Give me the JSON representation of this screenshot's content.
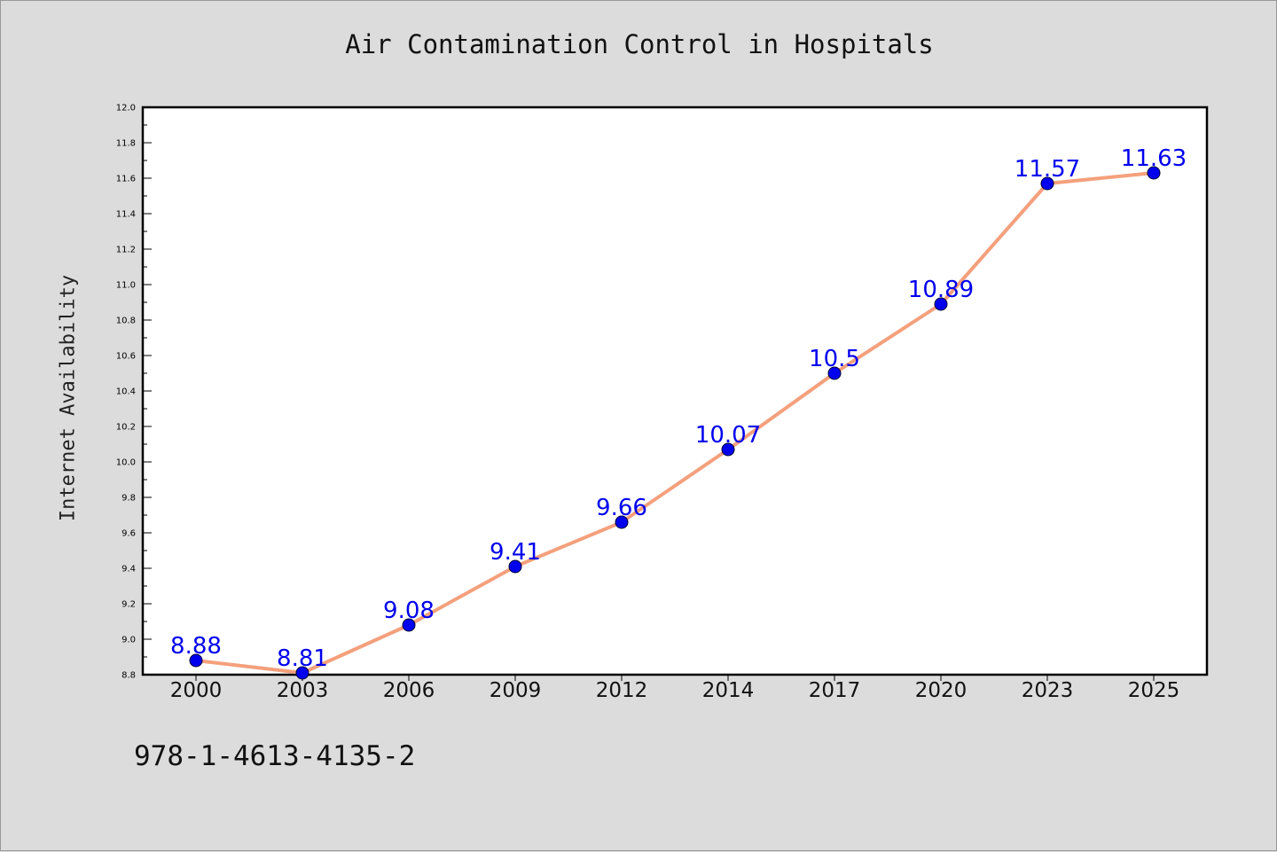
{
  "chart_data": {
    "type": "line",
    "title": "Air Contamination Control in Hospitals",
    "xlabel": "",
    "ylabel": "Internet Availability",
    "categories": [
      "2000",
      "2003",
      "2006",
      "2009",
      "2012",
      "2014",
      "2017",
      "2020",
      "2023",
      "2025"
    ],
    "series": [
      {
        "values": [
          8.88,
          8.81,
          9.08,
          9.41,
          9.66,
          10.07,
          10.5,
          10.89,
          11.57,
          11.63
        ]
      }
    ],
    "data_labels": [
      "8.88",
      "8.81",
      "9.08",
      "9.41",
      "9.66",
      "10.07",
      "10.5",
      "10.89",
      "11.57",
      "11.63"
    ],
    "ylim": [
      8.8,
      12.0
    ],
    "yticks": [
      "8.8",
      "9.0",
      "9.2",
      "9.4",
      "9.6",
      "9.8",
      "10.0",
      "10.2",
      "10.4",
      "10.6",
      "10.8",
      "11.0",
      "11.2",
      "11.4",
      "11.6",
      "11.8",
      "12.0"
    ],
    "grid": false,
    "legend": "none",
    "colors": {
      "line": "#f4a07c",
      "marker": "#0000ee",
      "marker_edge": "#000033",
      "label": "#0000ee",
      "plot_bg": "#ffffff",
      "figure_bg": "#dcdcdc"
    }
  },
  "footer": {
    "isbn": "978-1-4613-4135-2"
  }
}
